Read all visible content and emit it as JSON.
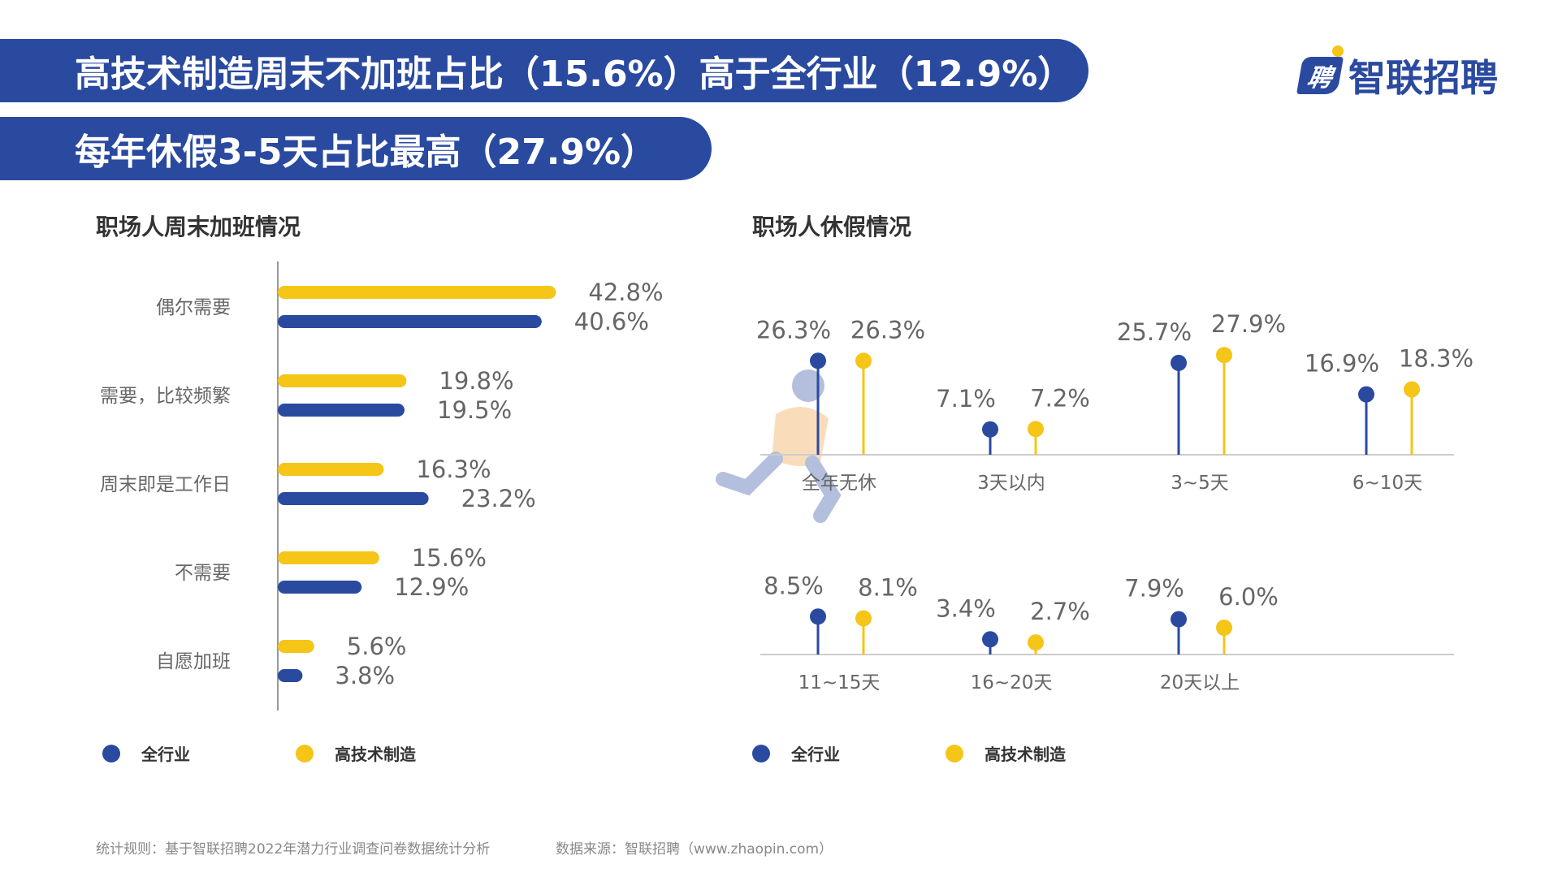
{
  "banner_title_1": "高技术制造周末不加班占比（15.6%）高于全行业（12.9%）",
  "banner_title_2": "每年休假3-5天占比最高（27.9%）",
  "logo": {
    "mark": "聘",
    "text": "智联招聘"
  },
  "colors": {
    "blue": "#2a4aa0",
    "yellow": "#f5c518",
    "axis": "#999999",
    "label": "#666666"
  },
  "left_chart_title": "职场人周末加班情况",
  "right_chart_title": "职场人休假情况",
  "legend": {
    "all": "全行业",
    "tech": "高技术制造"
  },
  "footnote_rule": "统计规则：基于智联招聘2022年潜力行业调查问卷数据统计分析",
  "footnote_source": "数据来源：智联招聘（www.zhaopin.com）",
  "chart_data": [
    {
      "type": "bar",
      "orientation": "horizontal",
      "title": "职场人周末加班情况",
      "categories": [
        "偶尔需要",
        "需要，比较频繁",
        "周末即是工作日",
        "不需要",
        "自愿加班"
      ],
      "series": [
        {
          "name": "高技术制造",
          "values": [
            42.8,
            19.8,
            16.3,
            15.6,
            5.6
          ],
          "labels": [
            "42.8%",
            "19.8%",
            "16.3%",
            "15.6%",
            "5.6%"
          ]
        },
        {
          "name": "全行业",
          "values": [
            40.6,
            19.5,
            23.2,
            12.9,
            3.8
          ],
          "labels": [
            "40.6%",
            "19.5%",
            "23.2%",
            "12.9%",
            "3.8%"
          ]
        }
      ],
      "xlim": [
        0,
        50
      ]
    },
    {
      "type": "lollipop",
      "title": "职场人休假情况",
      "categories": [
        "全年无休",
        "3天以内",
        "3~5天",
        "6~10天",
        "11~15天",
        "16~20天",
        "20天以上"
      ],
      "series": [
        {
          "name": "全行业",
          "values": [
            26.3,
            7.1,
            25.7,
            16.9,
            8.5,
            3.4,
            7.9
          ],
          "labels": [
            "26.3%",
            "7.1%",
            "25.7%",
            "16.9%",
            "8.5%",
            "3.4%",
            "7.9%"
          ]
        },
        {
          "name": "高技术制造",
          "values": [
            26.3,
            7.2,
            27.9,
            18.3,
            8.1,
            2.7,
            6.0
          ],
          "labels": [
            "26.3%",
            "7.2%",
            "27.9%",
            "18.3%",
            "8.1%",
            "2.7%",
            "6.0%"
          ]
        }
      ]
    }
  ]
}
